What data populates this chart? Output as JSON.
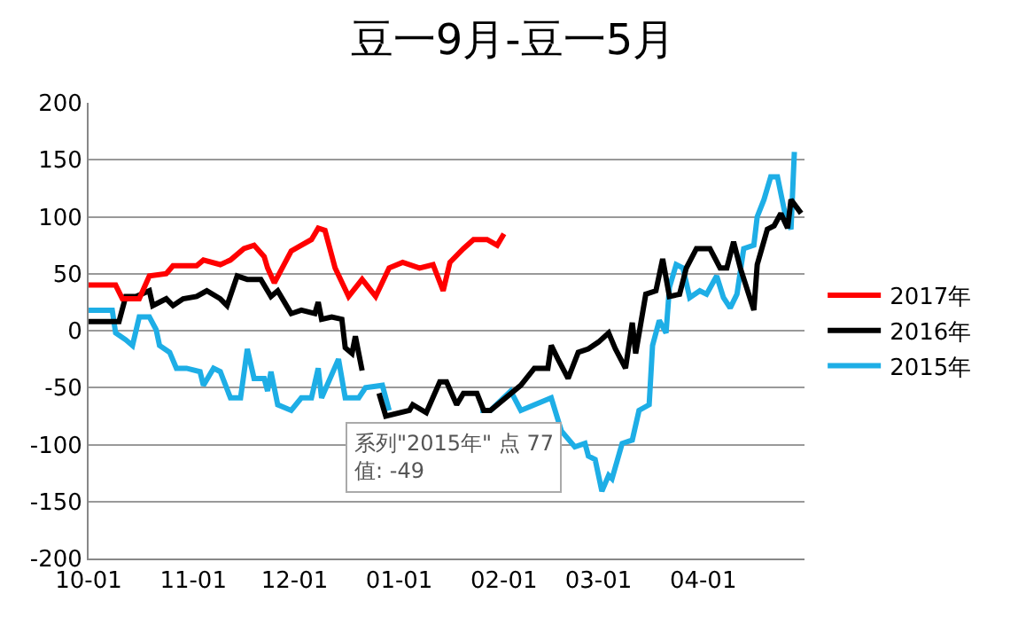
{
  "chart_data": {
    "type": "line",
    "title": "豆一9月-豆一5月",
    "xlim": [
      "2016-10-01",
      "2017-05-01"
    ],
    "xticks": [
      {
        "value": "2016-10-01",
        "label": "10-01"
      },
      {
        "value": "2016-11-01",
        "label": "11-01"
      },
      {
        "value": "2016-12-01",
        "label": "12-01"
      },
      {
        "value": "2017-01-01",
        "label": "01-01"
      },
      {
        "value": "2017-02-01",
        "label": "02-01"
      },
      {
        "value": "2017-03-01",
        "label": "03-01"
      },
      {
        "value": "2017-04-01",
        "label": "04-01"
      }
    ],
    "ylim": [
      -200,
      200
    ],
    "yticks": [
      -200,
      -150,
      -100,
      -50,
      0,
      50,
      100,
      150,
      200
    ],
    "grid": "y",
    "legend": "right",
    "marker": "none",
    "line_style": "solid",
    "annotations": [
      "系列\"2015年\" 点 77\n值: -49"
    ],
    "series": [
      {
        "name": "2017年",
        "color": "#ff0000",
        "x": [
          "2016-10-01",
          "2016-10-09",
          "2016-10-11",
          "2016-10-16",
          "2016-10-19",
          "2016-10-24",
          "2016-10-26",
          "2016-11-02",
          "2016-11-04",
          "2016-11-09",
          "2016-11-12",
          "2016-11-16",
          "2016-11-19",
          "2016-11-22",
          "2016-11-23",
          "2016-11-25",
          "2016-11-30",
          "2016-12-03",
          "2016-12-06",
          "2016-12-08",
          "2016-12-10",
          "2016-12-13",
          "2016-12-17",
          "2016-12-21",
          "2016-12-25",
          "2016-12-29",
          "2017-01-02",
          "2017-01-07",
          "2017-01-11",
          "2017-01-14",
          "2017-01-16",
          "2017-01-20",
          "2017-01-23",
          "2017-01-27",
          "2017-01-30",
          "2017-02-01"
        ],
        "values": [
          40,
          40,
          28,
          28,
          48,
          50,
          57,
          57,
          62,
          58,
          62,
          72,
          75,
          65,
          55,
          42,
          70,
          75,
          80,
          90,
          88,
          55,
          30,
          45,
          30,
          55,
          60,
          55,
          58,
          35,
          60,
          72,
          80,
          80,
          75,
          85
        ]
      },
      {
        "name": "2016年",
        "color": "#000000",
        "x": [
          "2016-10-01",
          "2016-10-10",
          "2016-10-12",
          "2016-10-15",
          "2016-10-19",
          "2016-10-20",
          "2016-10-24",
          "2016-10-26",
          "2016-10-29",
          "2016-11-02",
          "2016-11-05",
          "2016-11-09",
          "2016-11-11",
          "2016-11-14",
          "2016-11-17",
          "2016-11-21",
          "2016-11-24",
          "2016-11-26",
          "2016-11-28",
          "2016-11-30",
          "2016-12-03",
          "2016-12-07",
          "2016-12-08",
          "2016-12-09",
          "2016-12-12",
          "2016-12-15",
          "2016-12-16",
          "2016-12-18",
          "2016-12-19",
          "2016-12-21",
          "2016-12-22",
          "2016-12-26",
          "2016-12-28",
          "2017-01-04",
          "2017-01-05",
          "2017-01-09",
          "2017-01-13",
          "2017-01-15",
          "2017-01-18",
          "2017-01-20",
          "2017-01-24",
          "2017-01-26",
          "2017-01-28",
          "2017-02-06",
          "2017-02-10",
          "2017-02-14",
          "2017-02-15",
          "2017-02-17",
          "2017-02-20",
          "2017-02-23",
          "2017-02-26",
          "2017-03-01",
          "2017-03-04",
          "2017-03-06",
          "2017-03-09",
          "2017-03-11",
          "2017-03-12",
          "2017-03-15",
          "2017-03-18",
          "2017-03-20",
          "2017-03-22",
          "2017-03-25",
          "2017-03-27",
          "2017-03-30",
          "2017-04-03",
          "2017-04-06",
          "2017-04-08",
          "2017-04-10",
          "2017-04-12",
          "2017-04-16",
          "2017-04-17",
          "2017-04-20",
          "2017-04-22",
          "2017-04-24",
          "2017-04-26",
          "2017-04-27",
          "2017-04-30"
        ],
        "values": [
          8,
          8,
          30,
          30,
          35,
          22,
          28,
          22,
          28,
          30,
          35,
          28,
          22,
          48,
          45,
          45,
          30,
          35,
          25,
          15,
          18,
          15,
          25,
          10,
          12,
          10,
          -15,
          -20,
          -5,
          -35,
          null,
          -55,
          -75,
          -70,
          -65,
          -72,
          -45,
          -45,
          -65,
          -55,
          -55,
          -70,
          -70,
          -48,
          -33,
          -33,
          -13,
          -25,
          -42,
          -19,
          -16,
          -10,
          -2,
          -16,
          -33,
          7,
          -20,
          32,
          35,
          63,
          30,
          32,
          55,
          72,
          72,
          55,
          55,
          78,
          55,
          18,
          58,
          89,
          92,
          103,
          90,
          115,
          103
        ]
      },
      {
        "name": "2015年",
        "color": "#1eaee6",
        "x": [
          "2016-10-01",
          "2016-10-08",
          "2016-10-09",
          "2016-10-12",
          "2016-10-14",
          "2016-10-16",
          "2016-10-19",
          "2016-10-21",
          "2016-10-22",
          "2016-10-25",
          "2016-10-27",
          "2016-10-30",
          "2016-11-03",
          "2016-11-04",
          "2016-11-07",
          "2016-11-09",
          "2016-11-12",
          "2016-11-15",
          "2016-11-17",
          "2016-11-19",
          "2016-11-22",
          "2016-11-23",
          "2016-11-24",
          "2016-11-26",
          "2016-11-30",
          "2016-12-03",
          "2016-12-06",
          "2016-12-08",
          "2016-12-09",
          "2016-12-14",
          "2016-12-16",
          "2016-12-20",
          "2016-12-22",
          "2016-12-27",
          "2016-12-29",
          "2017-01-08",
          "2017-01-25",
          "2017-01-28",
          "2017-02-03",
          "2017-02-06",
          "2017-02-15",
          "2017-02-18",
          "2017-02-22",
          "2017-02-25",
          "2017-02-26",
          "2017-02-28",
          "2017-03-02",
          "2017-03-04",
          "2017-03-05",
          "2017-03-08",
          "2017-03-11",
          "2017-03-13",
          "2017-03-16",
          "2017-03-17",
          "2017-03-19",
          "2017-03-21",
          "2017-03-22",
          "2017-03-24",
          "2017-03-26",
          "2017-03-28",
          "2017-03-31",
          "2017-04-02",
          "2017-04-05",
          "2017-04-07",
          "2017-04-09",
          "2017-04-11",
          "2017-04-13",
          "2017-04-16",
          "2017-04-17",
          "2017-04-19",
          "2017-04-21",
          "2017-04-23",
          "2017-04-25",
          "2017-04-27",
          "2017-04-28"
        ],
        "values": [
          18,
          18,
          -2,
          -8,
          -13,
          12,
          12,
          1,
          -13,
          -19,
          -33,
          -33,
          -36,
          -48,
          -33,
          -36,
          -59,
          -59,
          -16,
          -42,
          -42,
          -53,
          -36,
          -65,
          -70,
          -59,
          -59,
          -33,
          -59,
          -25,
          -59,
          -59,
          -50,
          -48,
          -70,
          null,
          -70,
          -70,
          -53,
          -70,
          -59,
          -88,
          -102,
          -99,
          -110,
          -113,
          -141,
          -127,
          -130,
          -99,
          -96,
          -70,
          -65,
          -13,
          9,
          -2,
          38,
          58,
          55,
          29,
          35,
          32,
          48,
          29,
          20,
          32,
          72,
          75,
          100,
          115,
          135,
          135,
          106,
          89,
          157
        ]
      }
    ]
  }
}
